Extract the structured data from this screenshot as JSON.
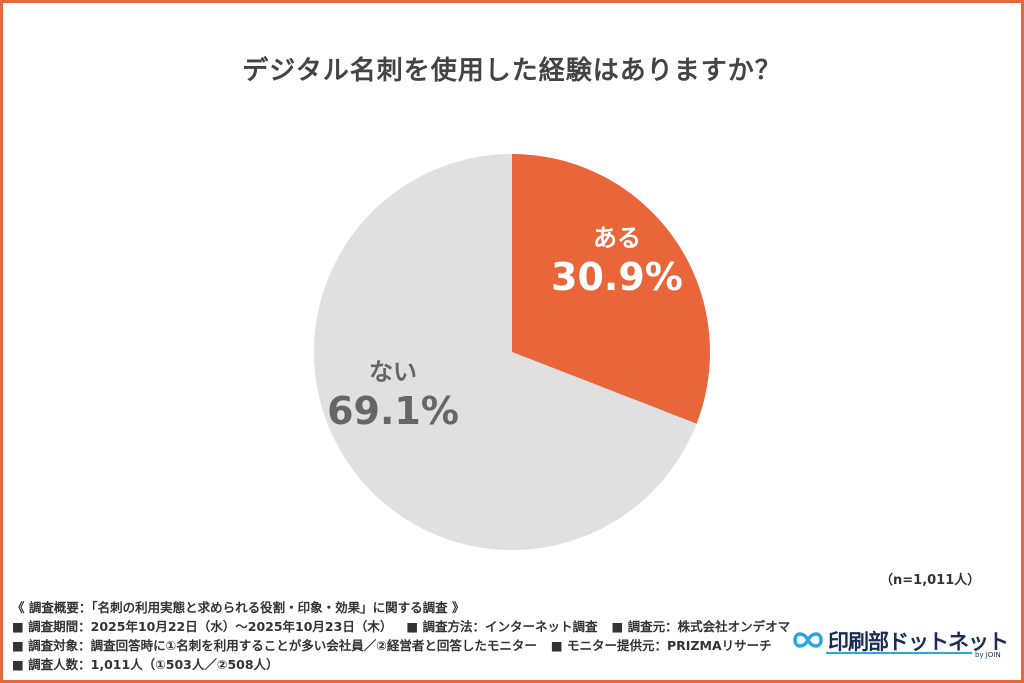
{
  "chart_data": {
    "type": "pie",
    "title": "デジタル名刺を使用した経験はありますか？",
    "slices": [
      {
        "label": "ある",
        "value": 30.9,
        "display": "30.9%",
        "color": "#e8663a",
        "text_color": "#ffffff"
      },
      {
        "label": "ない",
        "value": 69.1,
        "display": "69.1%",
        "color": "#e0e0e0",
        "text_color": "#666666"
      }
    ],
    "start_angle_deg": 0,
    "direction": "clockwise",
    "legend": "none"
  },
  "sample": "（n=1,011人）",
  "survey": {
    "overview": "《 調査概要：「名刺の利用実態と求められる役割・印象・効果」に関する調査 》",
    "period": "■ 調査期間：2025年10月22日（水）〜2025年10月23日（木）",
    "method": "■ 調査方法：インターネット調査",
    "source": "■ 調査元：株式会社オンデオマ",
    "target": "■ 調査対象：調査回答時に①名刺を利用することが多い会社員／②経営者と回答したモニター",
    "provider": "■ モニター提供元：PRIZMAリサーチ",
    "count": "■ 調査人数：1,011人（①503人／②508人）"
  },
  "logo": {
    "text": "印刷部ドットネット",
    "by": "by JOIN",
    "icon": "infinity-loop-icon",
    "color": "#1a2e55",
    "accent": "#2aa7df"
  }
}
